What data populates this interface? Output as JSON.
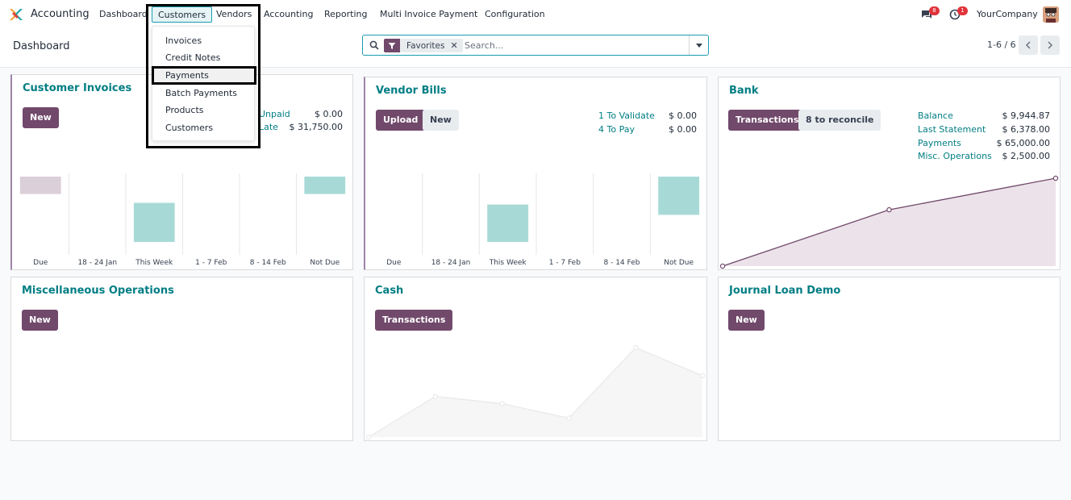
{
  "navbar": {
    "app_name": "Accounting",
    "menu": [
      "Dashboard",
      "Customers",
      "Vendors",
      "Accounting",
      "Reporting",
      "Multi Invoice Payment",
      "Configuration"
    ],
    "messages_badge": "8",
    "activities_badge": "1",
    "company": "YourCompany"
  },
  "dropdown": {
    "items": [
      "Invoices",
      "Credit Notes",
      "Payments",
      "Batch Payments",
      "Products",
      "Customers"
    ],
    "highlighted": "Payments"
  },
  "control_panel": {
    "breadcrumb": "Dashboard",
    "facet_label": "Favorites",
    "facet_remove": "✕",
    "search_placeholder": "Search...",
    "pager": "1-6 / 6"
  },
  "colors": {
    "primary": "#71496b",
    "title": "#017e84",
    "bar_positive": "#a7dad7",
    "bar_past": "#dbcfd9",
    "line": "#71496b"
  },
  "cards": {
    "customer_invoices": {
      "title": "Customer Invoices",
      "new_button": "New",
      "stats": [
        {
          "label": "Unpaid",
          "value": "$ 0.00"
        },
        {
          "label": "Late",
          "value": "$ 31,750.00"
        }
      ],
      "chart_data": {
        "type": "bar",
        "categories": [
          "Due",
          "18 - 24 Jan",
          "This Week",
          "1 - 7 Feb",
          "8 - 14 Feb",
          "Not Due"
        ],
        "series": [
          {
            "values": [
              2,
              0,
              4.5,
              0,
              0,
              2
            ]
          }
        ],
        "ylim": [
          0,
          9
        ]
      }
    },
    "vendor_bills": {
      "title": "Vendor Bills",
      "upload_button": "Upload",
      "new_button": "New",
      "stats": [
        {
          "label": "1 To Validate",
          "value": "$ 0.00"
        },
        {
          "label": "4 To Pay",
          "value": "$ 0.00"
        }
      ],
      "chart_data": {
        "type": "bar",
        "categories": [
          "Due",
          "18 - 24 Jan",
          "This Week",
          "1 - 7 Feb",
          "8 - 14 Feb",
          "Not Due"
        ],
        "series": [
          {
            "values": [
              0,
              0,
              4.3,
              0,
              0,
              4.4
            ]
          }
        ],
        "ylim": [
          0,
          9
        ]
      }
    },
    "bank": {
      "title": "Bank",
      "transactions_button": "Transactions",
      "reconcile_button": "8 to reconcile",
      "stats": [
        {
          "label": "Balance",
          "value": "$ 9,944.87"
        },
        {
          "label": "Last Statement",
          "value": "$ 6,378.00"
        },
        {
          "label": "Payments",
          "value": "$ 65,000.00"
        },
        {
          "label": "Misc. Operations",
          "value": "$ 2,500.00"
        }
      ],
      "chart_data": {
        "type": "area",
        "x": [
          0,
          1,
          2
        ],
        "series": [
          {
            "values": [
              0,
              6378,
              9944.87
            ]
          }
        ],
        "ylim": [
          0,
          9944.87
        ]
      }
    },
    "misc_operations": {
      "title": "Miscellaneous Operations",
      "new_button": "New"
    },
    "cash": {
      "title": "Cash",
      "transactions_button": "Transactions",
      "chart_data": {
        "type": "area",
        "x": [
          0,
          1,
          2,
          3,
          4,
          5
        ],
        "series": [
          {
            "values": [
              0,
              45,
              37,
              21,
              99,
              68
            ]
          }
        ],
        "ylim": [
          0,
          100
        ]
      }
    },
    "journal_loan": {
      "title": "Journal Loan Demo",
      "new_button": "New"
    }
  }
}
